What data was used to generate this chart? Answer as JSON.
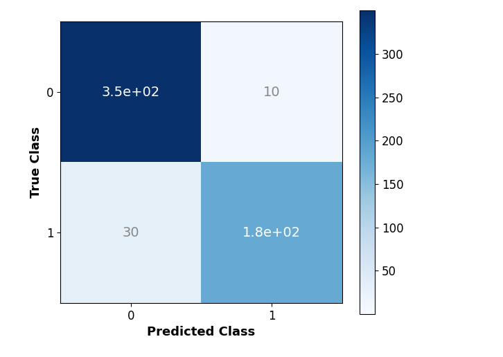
{
  "matrix": [
    [
      350,
      10
    ],
    [
      30,
      180
    ]
  ],
  "labels": [
    "0",
    "1"
  ],
  "xlabel": "Predicted Class",
  "ylabel": "True Class",
  "cmap": "Blues",
  "vmin": 0,
  "vmax": 350,
  "colorbar_ticks": [
    50,
    100,
    150,
    200,
    250,
    300
  ],
  "text_colors": {
    "light": "#888888",
    "dark": "#ffffff"
  },
  "cell_texts": [
    [
      "3.5e+02",
      "10"
    ],
    [
      "30",
      "1.8e+02"
    ]
  ],
  "figsize": [
    7.26,
    5.16
  ],
  "dpi": 100,
  "tick_fontsize": 12,
  "label_fontsize": 13,
  "text_fontsize": 14,
  "threshold": 175
}
